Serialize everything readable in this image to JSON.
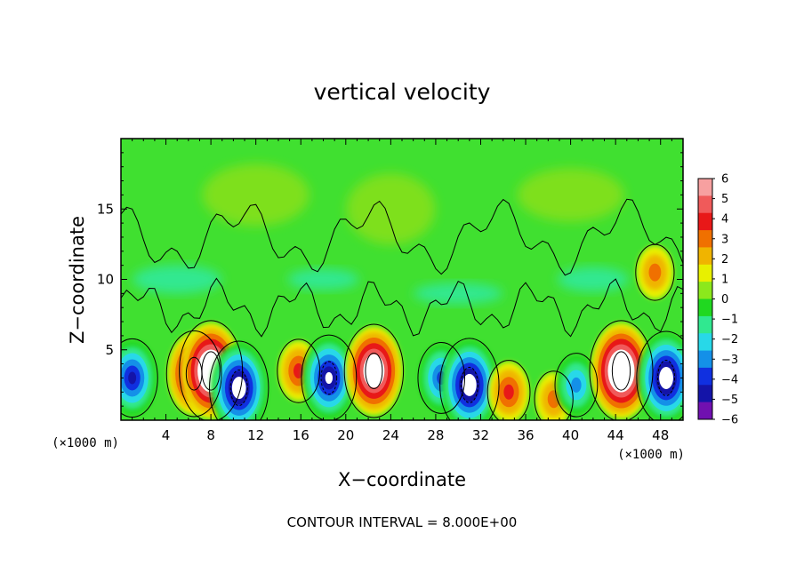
{
  "chart_data": {
    "type": "heatmap",
    "title": "vertical velocity",
    "xlabel": "X−coordinate",
    "ylabel": "Z−coordinate",
    "x_unit": "(×1000 m)",
    "z_unit": "(×1000 m)",
    "xlim": [
      0,
      50
    ],
    "ylim": [
      0,
      20
    ],
    "x_ticks": [
      4,
      8,
      12,
      16,
      20,
      24,
      28,
      32,
      36,
      40,
      44,
      48
    ],
    "y_ticks": [
      5,
      10,
      15
    ],
    "contour_note": "CONTOUR INTERVAL = 8.000E+00",
    "colorbar": {
      "levels": [
        6,
        5,
        4,
        3,
        2,
        1,
        0,
        -1,
        -2,
        -3,
        -4,
        -5,
        -6
      ],
      "labels": [
        "6",
        "5",
        "4",
        "3",
        "2",
        "1",
        "0",
        "−1",
        "−2",
        "−3",
        "−4",
        "−5",
        "−6"
      ],
      "colors": [
        "#f7a0a0",
        "#f05a5a",
        "#e81818",
        "#f07000",
        "#f0b400",
        "#e8f000",
        "#8ce81c",
        "#20d820",
        "#30e890",
        "#28d8e8",
        "#1490e8",
        "#1030e0",
        "#1414a8",
        "#7010b0"
      ]
    },
    "features": [
      {
        "kind": "updraft",
        "x": 6.5,
        "z": 3.3,
        "value": 7
      },
      {
        "kind": "updraft",
        "x": 8.0,
        "z": 3.5,
        "value": 9
      },
      {
        "kind": "downdraft",
        "x": 10.5,
        "z": 2.3,
        "value": -8
      },
      {
        "kind": "updraft",
        "x": 15.8,
        "z": 3.5,
        "value": 4
      },
      {
        "kind": "downdraft",
        "x": 18.5,
        "z": 3.0,
        "value": -7
      },
      {
        "kind": "updraft",
        "x": 22.5,
        "z": 3.5,
        "value": 8
      },
      {
        "kind": "downdraft",
        "x": 28.5,
        "z": 3.0,
        "value": -5
      },
      {
        "kind": "downdraft",
        "x": 31.0,
        "z": 2.5,
        "value": -8
      },
      {
        "kind": "updraft",
        "x": 34.5,
        "z": 2.0,
        "value": 4
      },
      {
        "kind": "updraft",
        "x": 38.5,
        "z": 1.5,
        "value": 3
      },
      {
        "kind": "downdraft",
        "x": 40.5,
        "z": 2.5,
        "value": -4
      },
      {
        "kind": "updraft",
        "x": 44.5,
        "z": 3.5,
        "value": 9
      },
      {
        "kind": "downdraft",
        "x": 48.5,
        "z": 3.0,
        "value": -8
      },
      {
        "kind": "downdraft",
        "x": 1.0,
        "z": 3.0,
        "value": -6
      },
      {
        "kind": "updraft",
        "x": 47.5,
        "z": 10.5,
        "value": 3
      }
    ]
  }
}
